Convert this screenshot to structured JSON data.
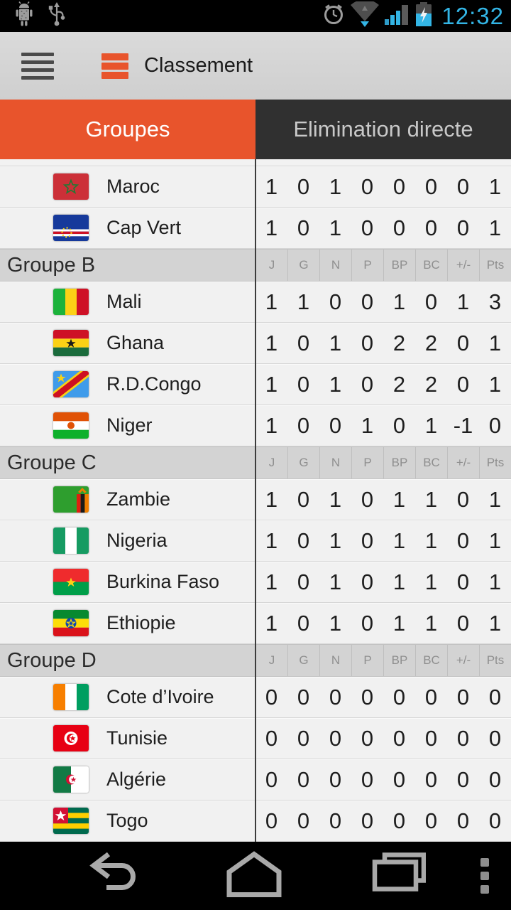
{
  "status_bar": {
    "time": "12:32",
    "left_icons": [
      "android-debug-icon",
      "usb-icon"
    ],
    "right_icons": [
      "alarm-icon",
      "wifi-icon",
      "signal-icon",
      "battery-charging-icon"
    ]
  },
  "app_bar": {
    "title": "Classement",
    "menu_icon": "hamburger-icon",
    "logo_icon": "app-logo-icon"
  },
  "tabs": [
    {
      "label": "Groupes",
      "active": true
    },
    {
      "label": "Elimination directe",
      "active": false
    }
  ],
  "table": {
    "columns": [
      "J",
      "G",
      "N",
      "P",
      "BP",
      "BC",
      "+/-",
      "Pts"
    ],
    "sections": [
      {
        "name": null,
        "teams": [
          {
            "name": "Maroc",
            "flag": "maroc",
            "stats": [
              1,
              0,
              1,
              0,
              0,
              0,
              0,
              1
            ]
          },
          {
            "name": "Cap Vert",
            "flag": "cap-vert",
            "stats": [
              1,
              0,
              1,
              0,
              0,
              0,
              0,
              1
            ]
          }
        ]
      },
      {
        "name": "Groupe B",
        "teams": [
          {
            "name": "Mali",
            "flag": "mali",
            "stats": [
              1,
              1,
              0,
              0,
              1,
              0,
              1,
              3
            ]
          },
          {
            "name": "Ghana",
            "flag": "ghana",
            "stats": [
              1,
              0,
              1,
              0,
              2,
              2,
              0,
              1
            ]
          },
          {
            "name": "R.D.Congo",
            "flag": "rdcongo",
            "stats": [
              1,
              0,
              1,
              0,
              2,
              2,
              0,
              1
            ]
          },
          {
            "name": "Niger",
            "flag": "niger",
            "stats": [
              1,
              0,
              0,
              1,
              0,
              1,
              -1,
              0
            ]
          }
        ]
      },
      {
        "name": "Groupe C",
        "teams": [
          {
            "name": "Zambie",
            "flag": "zambie",
            "stats": [
              1,
              0,
              1,
              0,
              1,
              1,
              0,
              1
            ]
          },
          {
            "name": "Nigeria",
            "flag": "nigeria",
            "stats": [
              1,
              0,
              1,
              0,
              1,
              1,
              0,
              1
            ]
          },
          {
            "name": "Burkina Faso",
            "flag": "burkina",
            "stats": [
              1,
              0,
              1,
              0,
              1,
              1,
              0,
              1
            ]
          },
          {
            "name": "Ethiopie",
            "flag": "ethiopie",
            "stats": [
              1,
              0,
              1,
              0,
              1,
              1,
              0,
              1
            ]
          }
        ]
      },
      {
        "name": "Groupe D",
        "teams": [
          {
            "name": "Cote d’Ivoire",
            "flag": "cotedivoire",
            "stats": [
              0,
              0,
              0,
              0,
              0,
              0,
              0,
              0
            ]
          },
          {
            "name": "Tunisie",
            "flag": "tunisie",
            "stats": [
              0,
              0,
              0,
              0,
              0,
              0,
              0,
              0
            ]
          },
          {
            "name": "Algérie",
            "flag": "algerie",
            "stats": [
              0,
              0,
              0,
              0,
              0,
              0,
              0,
              0
            ]
          },
          {
            "name": "Togo",
            "flag": "togo",
            "stats": [
              0,
              0,
              0,
              0,
              0,
              0,
              0,
              0
            ]
          }
        ]
      }
    ]
  },
  "nav_bar": {
    "icons": [
      "back-icon",
      "home-icon",
      "recents-icon",
      "menu-icon"
    ]
  },
  "colors": {
    "accent_orange": "#E8542C",
    "holo_blue": "#33B5E5",
    "inactive_tab_bg": "#303030",
    "row_bg": "#F1F1F1",
    "group_header_bg": "#D3D3D3",
    "status_nav_bg": "#000000"
  }
}
